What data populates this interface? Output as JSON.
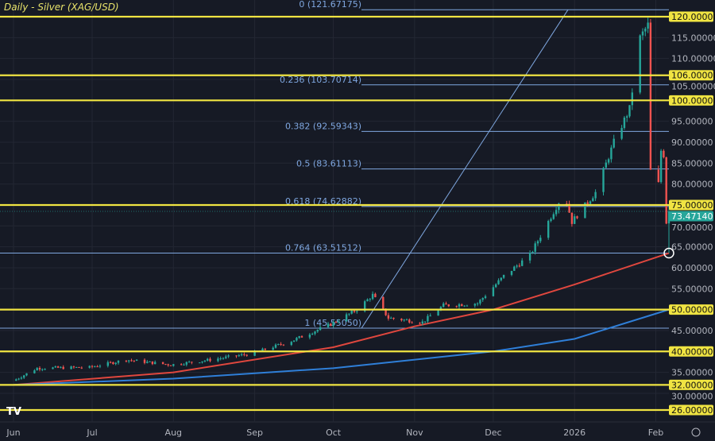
{
  "header": {
    "title": "Daily - Silver (XAG/USD)"
  },
  "chart_data": {
    "type": "candlestick",
    "title": "Daily - Silver (XAG/USD)",
    "ylim": [
      26,
      122
    ],
    "grid": true,
    "x_ticks": [
      {
        "label": "Jun",
        "date": "2025-06-01"
      },
      {
        "label": "Jul",
        "date": "2025-07-01"
      },
      {
        "label": "Aug",
        "date": "2025-08-01"
      },
      {
        "label": "Sep",
        "date": "2025-09-01"
      },
      {
        "label": "Oct",
        "date": "2025-10-01"
      },
      {
        "label": "Nov",
        "date": "2025-11-01"
      },
      {
        "label": "Dec",
        "date": "2025-12-01"
      },
      {
        "label": "2026",
        "date": "2026-01-01"
      },
      {
        "label": "Feb",
        "date": "2026-02-01"
      }
    ],
    "y_ticks": [
      120,
      115,
      110,
      105,
      100,
      95,
      90,
      85,
      80,
      75,
      70,
      65,
      60,
      55,
      50,
      45,
      40,
      35,
      30,
      26
    ],
    "price_anchors": [
      [
        "2025-06-01",
        33
      ],
      [
        "2025-06-10",
        36
      ],
      [
        "2025-06-30",
        36.2
      ],
      [
        "2025-07-14",
        38
      ],
      [
        "2025-07-31",
        36.8
      ],
      [
        "2025-08-15",
        38
      ],
      [
        "2025-08-31",
        39.5
      ],
      [
        "2025-09-15",
        42.5
      ],
      [
        "2025-09-30",
        46.5
      ],
      [
        "2025-10-10",
        50
      ],
      [
        "2025-10-16",
        53.5
      ],
      [
        "2025-10-22",
        48
      ],
      [
        "2025-11-04",
        47
      ],
      [
        "2025-11-12",
        51
      ],
      [
        "2025-11-25",
        51.5
      ],
      [
        "2025-12-05",
        58
      ],
      [
        "2025-12-15",
        63
      ],
      [
        "2025-12-28",
        78
      ],
      [
        "2025-12-31",
        71
      ],
      [
        "2026-01-09",
        78
      ],
      [
        "2026-01-16",
        90
      ],
      [
        "2026-01-22",
        98
      ],
      [
        "2026-01-26",
        115
      ],
      [
        "2026-01-29",
        118
      ],
      [
        "2026-01-30",
        83
      ],
      [
        "2026-02-02",
        80
      ],
      [
        "2026-02-03",
        88
      ],
      [
        "2026-02-04",
        87
      ],
      [
        "2026-02-05",
        71
      ],
      [
        "2026-02-06",
        73.4714
      ]
    ],
    "ma_red": [
      [
        "2025-06-01",
        32
      ],
      [
        "2025-08-01",
        35
      ],
      [
        "2025-10-01",
        41
      ],
      [
        "2025-11-01",
        46
      ],
      [
        "2025-12-01",
        50
      ],
      [
        "2026-01-01",
        56
      ],
      [
        "2026-02-06",
        63.5
      ]
    ],
    "ma_blue": [
      [
        "2025-06-01",
        32
      ],
      [
        "2025-08-01",
        33.5
      ],
      [
        "2025-10-01",
        36
      ],
      [
        "2025-12-01",
        40
      ],
      [
        "2026-01-01",
        43
      ],
      [
        "2026-02-06",
        50
      ]
    ],
    "horizontal_levels": [
      120,
      106,
      100,
      75,
      50,
      40,
      32,
      26
    ],
    "level_color": "#f0e442",
    "last_price": {
      "value": 73.4714,
      "label": "73.47140",
      "color": "#26a69a"
    },
    "fib_levels": [
      {
        "label": "0 (121.67175)",
        "value": 121.67175
      },
      {
        "label": "0.236 (103.70714)",
        "value": 103.70714
      },
      {
        "label": "0.382 (92.59343)",
        "value": 92.59343
      },
      {
        "label": "0.5 (83.61113)",
        "value": 83.61113
      },
      {
        "label": "0.618 (74.62882)",
        "value": 74.62882
      },
      {
        "label": "0.764 (63.51512)",
        "value": 63.51512
      },
      {
        "label": "1 (45.55050)",
        "value": 45.5505
      }
    ],
    "fib_color": "#7fa7e0",
    "up_color": "#26a69a",
    "down_color": "#ef5350"
  }
}
